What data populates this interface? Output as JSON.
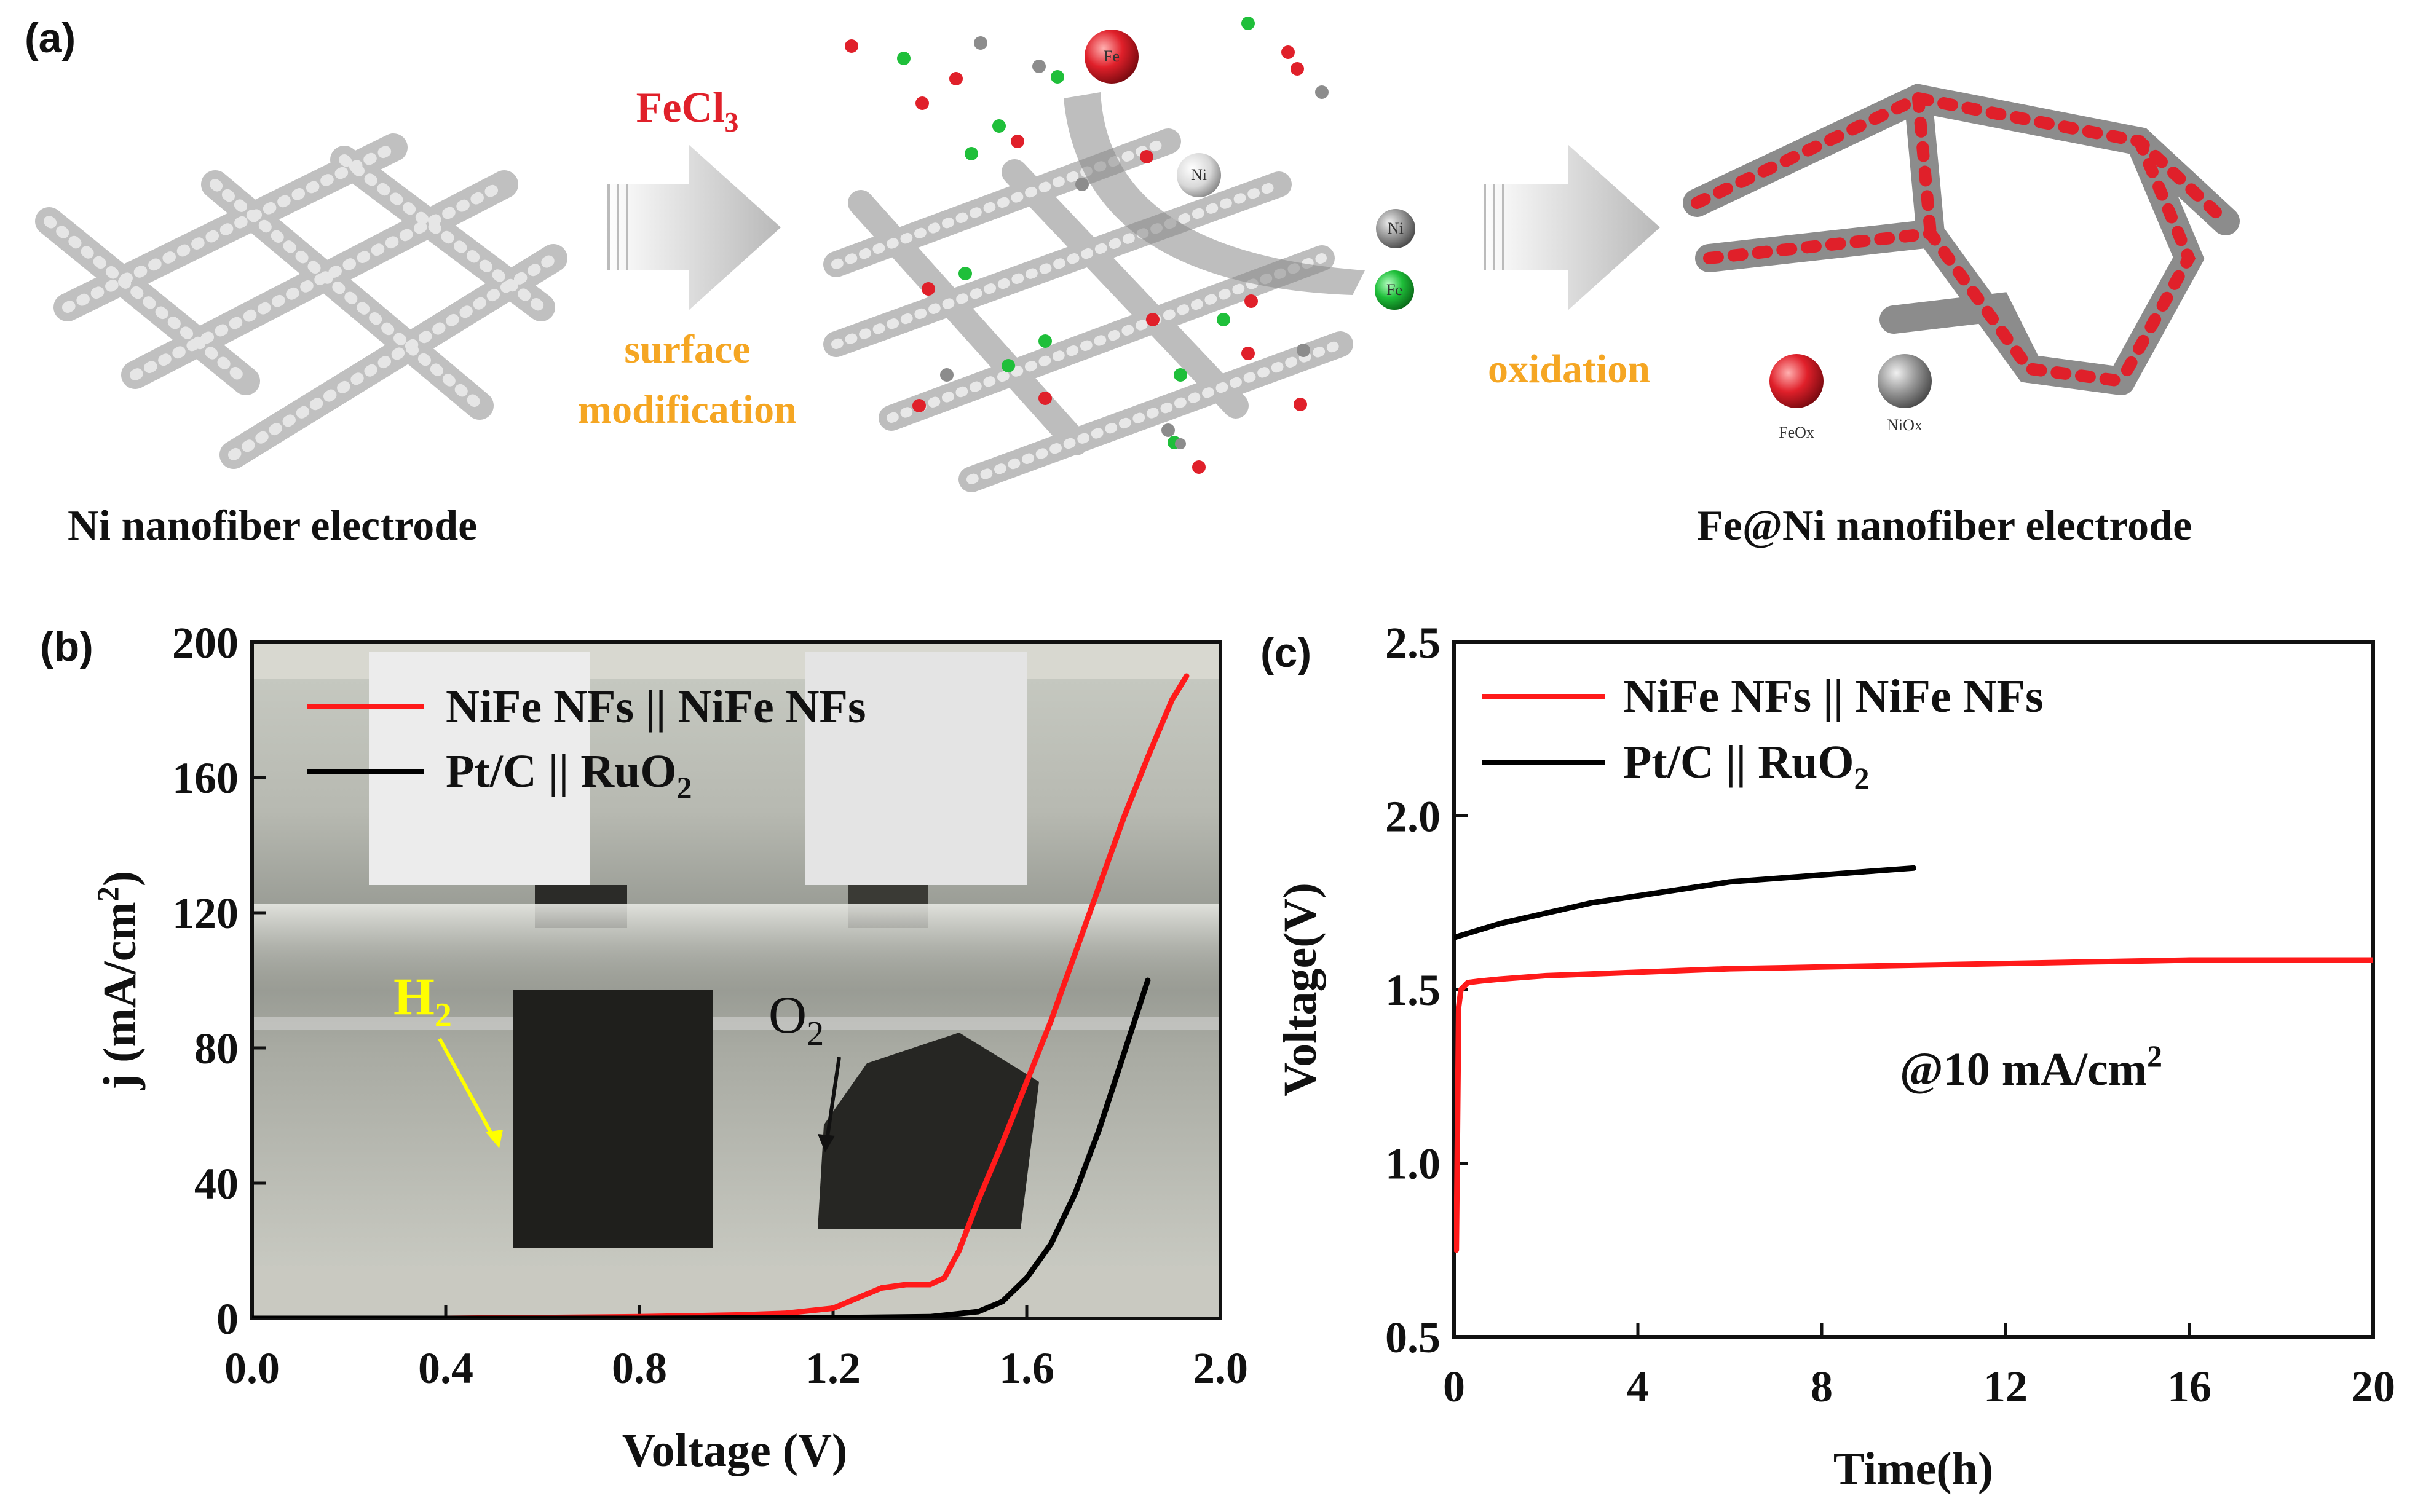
{
  "panel_a": {
    "label": "(a)",
    "reagent": {
      "base": "FeCl",
      "subscript": "3"
    },
    "step1": {
      "line1": "surface",
      "line2": "modification"
    },
    "step2": "oxidation",
    "atom_fe": "Fe",
    "atom_ni": "Ni",
    "legend_feox": "FeOx",
    "legend_niox": "NiOx",
    "caption_left": "Ni nanofiber electrode",
    "caption_right": "Fe@Ni nanofiber electrode",
    "colors": {
      "fe": "#e0202a",
      "ni": "#8c8c8c",
      "cl": "#1fbf3a",
      "orange": "#f5a623"
    }
  },
  "panel_b": {
    "label": "(b)",
    "photo_label_h2": {
      "base": "H",
      "subscript": "2"
    },
    "photo_label_o2": {
      "base": "O",
      "subscript": "2"
    }
  },
  "panel_c": {
    "label": "(c)",
    "annotation": {
      "base": "@10 mA/cm",
      "superscript": "2"
    }
  },
  "chart_data": [
    {
      "type": "line",
      "panel": "(b)",
      "xlabel": "Voltage (V)",
      "ylabel": {
        "base": "j (mA/cm",
        "superscript": "2",
        "suffix": ")"
      },
      "xlim": [
        0.0,
        2.0
      ],
      "ylim": [
        0,
        200
      ],
      "xticks": [
        0.0,
        0.4,
        0.8,
        1.2,
        1.6,
        2.0
      ],
      "xtick_labels": [
        "0.0",
        "0.4",
        "0.8",
        "1.2",
        "1.6",
        "2.0"
      ],
      "yticks": [
        0,
        40,
        80,
        120,
        160,
        200
      ],
      "ytick_labels": [
        "0",
        "40",
        "80",
        "120",
        "160",
        "200"
      ],
      "legend_position": "top-left",
      "series": [
        {
          "name": "NiFe NFs || NiFe NFs",
          "legend": {
            "base": "NiFe NFs || NiFe NFs"
          },
          "color": "#ff1a1a",
          "x": [
            0.0,
            0.4,
            0.8,
            1.0,
            1.1,
            1.2,
            1.25,
            1.3,
            1.35,
            1.4,
            1.43,
            1.46,
            1.5,
            1.55,
            1.6,
            1.65,
            1.7,
            1.75,
            1.8,
            1.85,
            1.9,
            1.93
          ],
          "y": [
            -2,
            0,
            0.5,
            1,
            1.5,
            3,
            6,
            9,
            10,
            10,
            12,
            20,
            35,
            52,
            70,
            88,
            108,
            128,
            148,
            166,
            183,
            190
          ]
        },
        {
          "name": "Pt/C || RuO2",
          "legend": {
            "base": "Pt/C || RuO",
            "subscript": "2"
          },
          "color": "#000000",
          "x": [
            0.0,
            0.4,
            0.8,
            1.2,
            1.4,
            1.5,
            1.55,
            1.6,
            1.65,
            1.7,
            1.75,
            1.8,
            1.85
          ],
          "y": [
            0,
            0,
            0,
            0.2,
            0.5,
            2,
            5,
            12,
            22,
            37,
            56,
            78,
            100
          ]
        }
      ]
    },
    {
      "type": "line",
      "panel": "(c)",
      "xlabel": "Time(h)",
      "ylabel": {
        "base": "Voltage(V)"
      },
      "xlim": [
        0,
        20
      ],
      "ylim": [
        0.5,
        2.5
      ],
      "xticks": [
        0,
        4,
        8,
        12,
        16,
        20
      ],
      "xtick_labels": [
        "0",
        "4",
        "8",
        "12",
        "16",
        "20"
      ],
      "yticks": [
        0.5,
        1.0,
        1.5,
        2.0,
        2.5
      ],
      "ytick_labels": [
        "0.5",
        "1.0",
        "1.5",
        "2.0",
        "2.5"
      ],
      "legend_position": "top-left",
      "series": [
        {
          "name": "NiFe NFs || NiFe NFs",
          "legend": {
            "base": "NiFe NFs || NiFe NFs"
          },
          "color": "#ff1a1a",
          "x": [
            0.05,
            0.1,
            0.15,
            0.3,
            0.6,
            1,
            2,
            4,
            6,
            8,
            10,
            12,
            14,
            16,
            18,
            20
          ],
          "y": [
            0.75,
            1.45,
            1.5,
            1.52,
            1.525,
            1.53,
            1.54,
            1.55,
            1.56,
            1.565,
            1.57,
            1.575,
            1.58,
            1.585,
            1.585,
            1.585
          ]
        },
        {
          "name": "Pt/C || RuO2",
          "legend": {
            "base": "Pt/C || RuO",
            "subscript": "2"
          },
          "color": "#000000",
          "x": [
            0,
            0.5,
            1,
            2,
            3,
            4,
            5,
            6,
            7,
            8,
            9,
            10
          ],
          "y": [
            1.65,
            1.67,
            1.69,
            1.72,
            1.75,
            1.77,
            1.79,
            1.81,
            1.82,
            1.83,
            1.84,
            1.85
          ]
        }
      ]
    }
  ]
}
